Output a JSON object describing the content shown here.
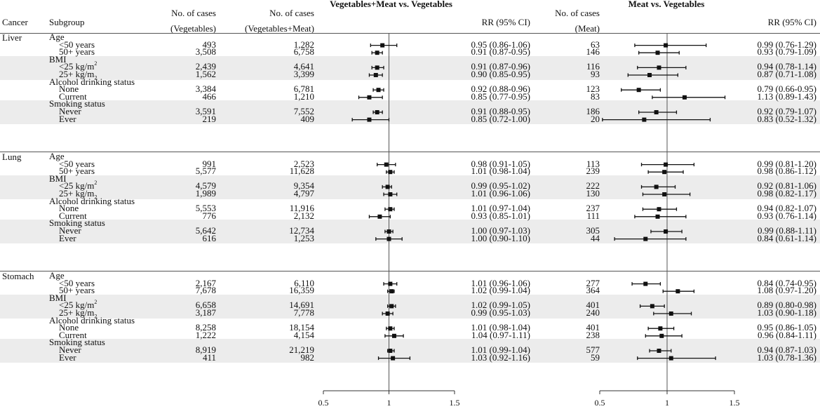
{
  "header": {
    "cancer": "Cancer",
    "subgroup": "Subgroup",
    "veg_cases_l1": "No. of cases",
    "veg_cases_l2": "(Vegetables)",
    "vm_cases_l1": "No. of cases",
    "vm_cases_l2": "(Vegetables+Meat)",
    "panel1_title": "Vegetables+Meat vs. Vegetables",
    "rr1": "RR (95% CI)",
    "meat_cases_l1": "No. of cases",
    "meat_cases_l2": "(Meat)",
    "panel2_title": "Meat vs. Vegetables",
    "rr2": "RR (95% CI)"
  },
  "chart_data": [
    {
      "type": "forest",
      "title": "Vegetables+Meat vs. Vegetables",
      "xlim": [
        0.5,
        1.5
      ],
      "xticks": [
        "0.5",
        "1",
        "1.5"
      ],
      "reference_line": 1,
      "points": [
        {
          "rr": 0.95,
          "lo": 0.86,
          "hi": 1.06
        },
        {
          "rr": 0.91,
          "lo": 0.87,
          "hi": 0.95
        },
        {
          "rr": 0.91,
          "lo": 0.87,
          "hi": 0.96
        },
        {
          "rr": 0.9,
          "lo": 0.85,
          "hi": 0.95
        },
        {
          "rr": 0.92,
          "lo": 0.88,
          "hi": 0.96
        },
        {
          "rr": 0.85,
          "lo": 0.77,
          "hi": 0.95
        },
        {
          "rr": 0.91,
          "lo": 0.88,
          "hi": 0.95
        },
        {
          "rr": 0.85,
          "lo": 0.72,
          "hi": 1.0
        },
        {
          "rr": 0.98,
          "lo": 0.91,
          "hi": 1.05
        },
        {
          "rr": 1.01,
          "lo": 0.98,
          "hi": 1.04
        },
        {
          "rr": 0.99,
          "lo": 0.95,
          "hi": 1.02
        },
        {
          "rr": 1.01,
          "lo": 0.96,
          "hi": 1.06
        },
        {
          "rr": 1.01,
          "lo": 0.97,
          "hi": 1.04
        },
        {
          "rr": 0.93,
          "lo": 0.85,
          "hi": 1.01
        },
        {
          "rr": 1.0,
          "lo": 0.97,
          "hi": 1.03
        },
        {
          "rr": 1.0,
          "lo": 0.9,
          "hi": 1.1
        },
        {
          "rr": 1.01,
          "lo": 0.96,
          "hi": 1.06
        },
        {
          "rr": 1.02,
          "lo": 0.99,
          "hi": 1.04
        },
        {
          "rr": 1.02,
          "lo": 0.99,
          "hi": 1.05
        },
        {
          "rr": 0.99,
          "lo": 0.95,
          "hi": 1.03
        },
        {
          "rr": 1.01,
          "lo": 0.98,
          "hi": 1.04
        },
        {
          "rr": 1.04,
          "lo": 0.97,
          "hi": 1.11
        },
        {
          "rr": 1.01,
          "lo": 0.99,
          "hi": 1.04
        },
        {
          "rr": 1.03,
          "lo": 0.92,
          "hi": 1.16
        }
      ]
    },
    {
      "type": "forest",
      "title": "Meat vs. Vegetables",
      "xlim": [
        0.5,
        1.5
      ],
      "xticks": [
        "0.5",
        "1",
        "1.5"
      ],
      "reference_line": 1,
      "points": [
        {
          "rr": 0.99,
          "lo": 0.76,
          "hi": 1.29
        },
        {
          "rr": 0.93,
          "lo": 0.79,
          "hi": 1.09
        },
        {
          "rr": 0.94,
          "lo": 0.78,
          "hi": 1.14
        },
        {
          "rr": 0.87,
          "lo": 0.71,
          "hi": 1.08
        },
        {
          "rr": 0.79,
          "lo": 0.66,
          "hi": 0.95
        },
        {
          "rr": 1.13,
          "lo": 0.89,
          "hi": 1.43
        },
        {
          "rr": 0.92,
          "lo": 0.79,
          "hi": 1.07
        },
        {
          "rr": 0.83,
          "lo": 0.52,
          "hi": 1.32
        },
        {
          "rr": 0.99,
          "lo": 0.81,
          "hi": 1.2
        },
        {
          "rr": 0.98,
          "lo": 0.86,
          "hi": 1.12
        },
        {
          "rr": 0.92,
          "lo": 0.81,
          "hi": 1.06
        },
        {
          "rr": 0.98,
          "lo": 0.82,
          "hi": 1.17
        },
        {
          "rr": 0.94,
          "lo": 0.82,
          "hi": 1.07
        },
        {
          "rr": 0.93,
          "lo": 0.76,
          "hi": 1.14
        },
        {
          "rr": 0.99,
          "lo": 0.88,
          "hi": 1.11
        },
        {
          "rr": 0.84,
          "lo": 0.61,
          "hi": 1.14
        },
        {
          "rr": 0.84,
          "lo": 0.74,
          "hi": 0.95
        },
        {
          "rr": 1.08,
          "lo": 0.97,
          "hi": 1.2
        },
        {
          "rr": 0.89,
          "lo": 0.8,
          "hi": 0.98
        },
        {
          "rr": 1.03,
          "lo": 0.9,
          "hi": 1.18
        },
        {
          "rr": 0.95,
          "lo": 0.86,
          "hi": 1.05
        },
        {
          "rr": 0.96,
          "lo": 0.84,
          "hi": 1.11
        },
        {
          "rr": 0.94,
          "lo": 0.87,
          "hi": 1.03
        },
        {
          "rr": 1.03,
          "lo": 0.78,
          "hi": 1.36
        }
      ]
    }
  ],
  "cancers": [
    {
      "name": "Liver",
      "groups": [
        {
          "name": "Age",
          "rows": [
            {
              "label": "<50 years",
              "sup": "",
              "sub": "",
              "veg": "493",
              "vm": "1,282",
              "ci1": "0.95 (0.86-1.06)",
              "meat": "63",
              "ci2": "0.99 (0.76-1.29)"
            },
            {
              "label": "50+ years",
              "sup": "",
              "sub": "",
              "veg": "3,508",
              "vm": "6,758",
              "ci1": "0.91 (0.87-0.95)",
              "meat": "146",
              "ci2": "0.93 (0.79-1.09)"
            }
          ]
        },
        {
          "name": "BMI",
          "rows": [
            {
              "label": "<25 kg/m",
              "sup": "2",
              "sub": "",
              "veg": "2,439",
              "vm": "4,641",
              "ci1": "0.91 (0.87-0.96)",
              "meat": "116",
              "ci2": "0.94 (0.78-1.14)"
            },
            {
              "label": "25+ kg/m",
              "sup": "",
              "sub": "2",
              "veg": "1,562",
              "vm": "3,399",
              "ci1": "0.90 (0.85-0.95)",
              "meat": "93",
              "ci2": "0.87 (0.71-1.08)"
            }
          ]
        },
        {
          "name": "Alcohol drinking status",
          "rows": [
            {
              "label": "None",
              "sup": "",
              "sub": "",
              "veg": "3,384",
              "vm": "6,781",
              "ci1": "0.92 (0.88-0.96)",
              "meat": "123",
              "ci2": "0.79 (0.66-0.95)"
            },
            {
              "label": "Current",
              "sup": "",
              "sub": "",
              "veg": "466",
              "vm": "1,210",
              "ci1": "0.85 (0.77-0.95)",
              "meat": "83",
              "ci2": "1.13 (0.89-1.43)"
            }
          ]
        },
        {
          "name": "Smoking status",
          "rows": [
            {
              "label": "Never",
              "sup": "",
              "sub": "",
              "veg": "3,591",
              "vm": "7,552",
              "ci1": "0.91 (0.88-0.95)",
              "meat": "186",
              "ci2": "0.92 (0.79-1.07)"
            },
            {
              "label": "Ever",
              "sup": "",
              "sub": "",
              "veg": "219",
              "vm": "409",
              "ci1": "0.85 (0.72-1.00)",
              "meat": "20",
              "ci2": "0.83 (0.52-1.32)"
            }
          ]
        }
      ]
    },
    {
      "name": "Lung",
      "groups": [
        {
          "name": "Age",
          "rows": [
            {
              "label": "<50 years",
              "sup": "",
              "sub": "",
              "veg": "991",
              "vm": "2,523",
              "ci1": "0.98 (0.91-1.05)",
              "meat": "113",
              "ci2": "0.99 (0.81-1.20)"
            },
            {
              "label": "50+ years",
              "sup": "",
              "sub": "",
              "veg": "5,577",
              "vm": "11,628",
              "ci1": "1.01 (0.98-1.04)",
              "meat": "239",
              "ci2": "0.98 (0.86-1.12)"
            }
          ]
        },
        {
          "name": "BMI",
          "rows": [
            {
              "label": "<25 kg/m",
              "sup": "2",
              "sub": "",
              "veg": "4,579",
              "vm": "9,354",
              "ci1": "0.99 (0.95-1.02)",
              "meat": "222",
              "ci2": "0.92 (0.81-1.06)"
            },
            {
              "label": "25+ kg/m",
              "sup": "",
              "sub": "2",
              "veg": "1,989",
              "vm": "4,797",
              "ci1": "1.01 (0.96-1.06)",
              "meat": "130",
              "ci2": "0.98 (0.82-1.17)"
            }
          ]
        },
        {
          "name": "Alcohol drinking status",
          "rows": [
            {
              "label": "None",
              "sup": "",
              "sub": "",
              "veg": "5,553",
              "vm": "11,916",
              "ci1": "1.01 (0.97-1.04)",
              "meat": "237",
              "ci2": "0.94 (0.82-1.07)"
            },
            {
              "label": "Current",
              "sup": "",
              "sub": "",
              "veg": "776",
              "vm": "2,132",
              "ci1": "0.93 (0.85-1.01)",
              "meat": "111",
              "ci2": "0.93 (0.76-1.14)"
            }
          ]
        },
        {
          "name": "Smoking status",
          "rows": [
            {
              "label": "Never",
              "sup": "",
              "sub": "",
              "veg": "5,642",
              "vm": "12,734",
              "ci1": "1.00 (0.97-1.03)",
              "meat": "305",
              "ci2": "0.99 (0.88-1.11)"
            },
            {
              "label": "Ever",
              "sup": "",
              "sub": "",
              "veg": "616",
              "vm": "1,253",
              "ci1": "1.00 (0.90-1.10)",
              "meat": "44",
              "ci2": "0.84 (0.61-1.14)"
            }
          ]
        }
      ]
    },
    {
      "name": "Stomach",
      "groups": [
        {
          "name": "Age",
          "rows": [
            {
              "label": "<50 years",
              "sup": "",
              "sub": "",
              "veg": "2,167",
              "vm": "6,110",
              "ci1": "1.01 (0.96-1.06)",
              "meat": "277",
              "ci2": "0.84 (0.74-0.95)"
            },
            {
              "label": "50+ years",
              "sup": "",
              "sub": "",
              "veg": "7,678",
              "vm": "16,359",
              "ci1": "1.02 (0.99-1.04)",
              "meat": "364",
              "ci2": "1.08 (0.97-1.20)"
            }
          ]
        },
        {
          "name": "BMI",
          "rows": [
            {
              "label": "<25 kg/m",
              "sup": "2",
              "sub": "",
              "veg": "6,658",
              "vm": "14,691",
              "ci1": "1.02 (0.99-1.05)",
              "meat": "401",
              "ci2": "0.89 (0.80-0.98)"
            },
            {
              "label": "25+ kg/m",
              "sup": "",
              "sub": "2",
              "veg": "3,187",
              "vm": "7,778",
              "ci1": "0.99 (0.95-1.03)",
              "meat": "240",
              "ci2": "1.03 (0.90-1.18)"
            }
          ]
        },
        {
          "name": "Alcohol drinking status",
          "rows": [
            {
              "label": "None",
              "sup": "",
              "sub": "",
              "veg": "8,258",
              "vm": "18,154",
              "ci1": "1.01 (0.98-1.04)",
              "meat": "401",
              "ci2": "0.95 (0.86-1.05)"
            },
            {
              "label": "Current",
              "sup": "",
              "sub": "",
              "veg": "1,222",
              "vm": "4,154",
              "ci1": "1.04 (0.97-1.11)",
              "meat": "238",
              "ci2": "0.96 (0.84-1.11)"
            }
          ]
        },
        {
          "name": "Smoking status",
          "rows": [
            {
              "label": "Never",
              "sup": "",
              "sub": "",
              "veg": "8,919",
              "vm": "21,219",
              "ci1": "1.01 (0.99-1.04)",
              "meat": "577",
              "ci2": "0.94 (0.87-1.03)"
            },
            {
              "label": "Ever",
              "sup": "",
              "sub": "",
              "veg": "411",
              "vm": "982",
              "ci1": "1.03 (0.92-1.16)",
              "meat": "59",
              "ci2": "1.03 (0.78-1.36)"
            }
          ]
        }
      ]
    }
  ]
}
